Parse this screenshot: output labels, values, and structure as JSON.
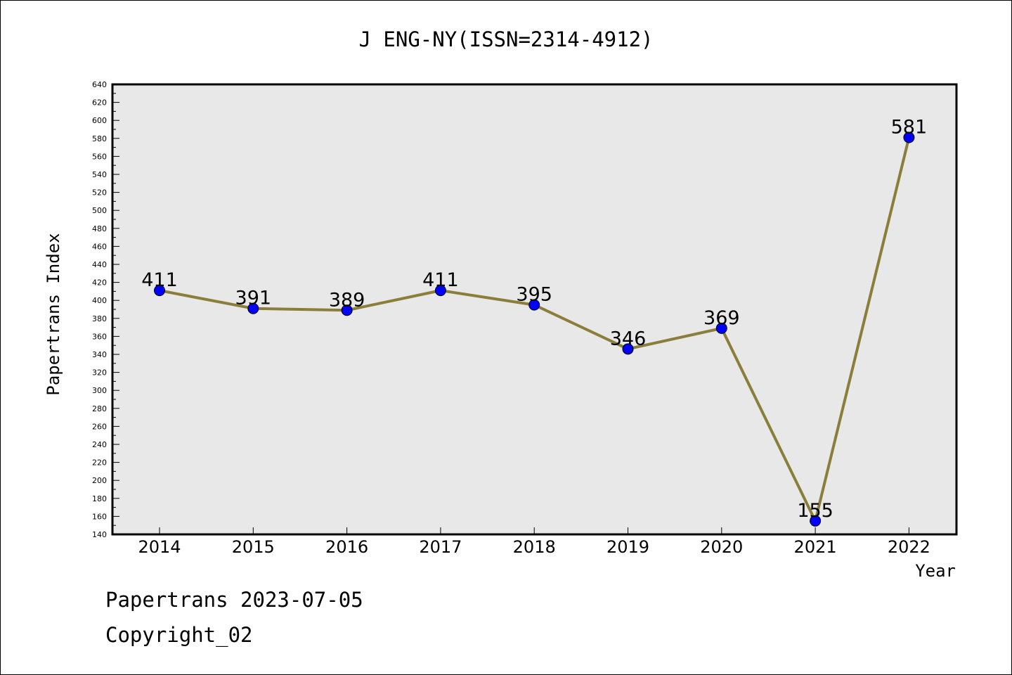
{
  "chart_data": {
    "type": "line",
    "title": "J ENG-NY(ISSN=2314-4912)",
    "xlabel": "Year",
    "ylabel": "Papertrans Index",
    "categories": [
      "2014",
      "2015",
      "2016",
      "2017",
      "2018",
      "2019",
      "2020",
      "2021",
      "2022"
    ],
    "series": [
      {
        "values": [
          411,
          391,
          389,
          411,
          395,
          346,
          369,
          155,
          581
        ]
      }
    ],
    "data_labels": [
      "411",
      "391",
      "389",
      "411",
      "395",
      "346",
      "369",
      "155",
      "581"
    ],
    "ylim": [
      140,
      640
    ],
    "yticks": [
      "140",
      "160",
      "180",
      "200",
      "220",
      "240",
      "260",
      "280",
      "300",
      "320",
      "340",
      "360",
      "380",
      "400",
      "420",
      "440",
      "460",
      "480",
      "500",
      "520",
      "540",
      "560",
      "580",
      "600",
      "620",
      "640"
    ],
    "grid": false,
    "legend": "none",
    "colors": {
      "line": "#8b7d3a",
      "marker": "#0000ff",
      "plot_background": "#e8e8e8"
    }
  },
  "footer": {
    "date_line": "Papertrans 2023-07-05",
    "copyright": "Copyright_02"
  }
}
